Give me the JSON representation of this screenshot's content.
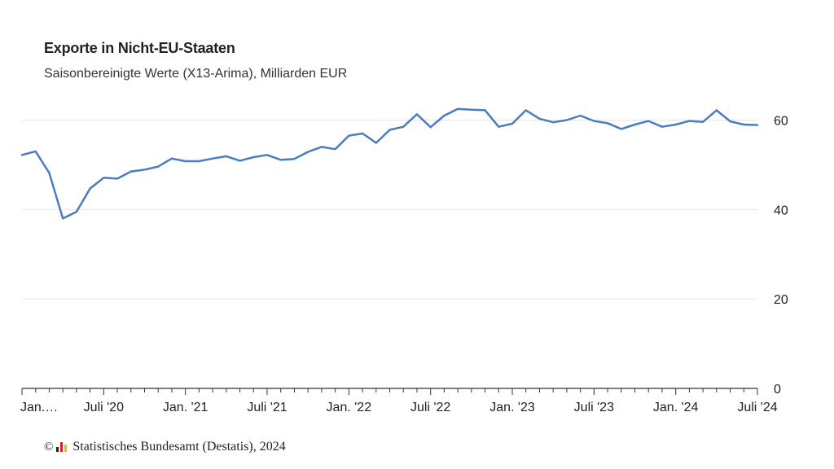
{
  "colors": {
    "line": "#4a7cbe",
    "grid": "#e6e6e6",
    "axis": "#333333"
  },
  "footer": {
    "copyright_symbol": "©",
    "source": "Statistisches Bundesamt (Destatis), 2024",
    "logo_icon": "destatis-logo-icon"
  },
  "chart_data": {
    "type": "line",
    "title": "Exporte in Nicht-EU-Staaten",
    "subtitle": "Saisonbereinigte Werte (X13-Arima), Milliarden EUR",
    "ylim": [
      0,
      65
    ],
    "yticks": [
      0,
      20,
      40,
      60
    ],
    "y_axis_position": "right",
    "grid": true,
    "xtick_labels": [
      {
        "index": 0,
        "label": "Jan.…"
      },
      {
        "index": 6,
        "label": "Juli '20"
      },
      {
        "index": 12,
        "label": "Jan. '21"
      },
      {
        "index": 18,
        "label": "Juli '21"
      },
      {
        "index": 24,
        "label": "Jan. '22"
      },
      {
        "index": 30,
        "label": "Juli '22"
      },
      {
        "index": 36,
        "label": "Jan. '23"
      },
      {
        "index": 42,
        "label": "Juli '23"
      },
      {
        "index": 48,
        "label": "Jan. '24"
      },
      {
        "index": 54,
        "label": "Juli '24"
      }
    ],
    "x_start": "2020-01",
    "x_end": "2024-07",
    "values": [
      52.2,
      53.0,
      48.2,
      38.0,
      39.5,
      44.7,
      47.1,
      46.9,
      48.5,
      48.9,
      49.6,
      51.4,
      50.8,
      50.8,
      51.4,
      51.9,
      50.9,
      51.7,
      52.2,
      51.1,
      51.3,
      52.9,
      54.0,
      53.5,
      56.5,
      57.0,
      54.9,
      57.8,
      58.5,
      61.3,
      58.4,
      61.0,
      62.5,
      62.3,
      62.2,
      58.5,
      59.2,
      62.2,
      60.3,
      59.5,
      60.0,
      61.0,
      59.8,
      59.3,
      58.0,
      59.0,
      59.8,
      58.5,
      59.0,
      59.8,
      59.6,
      62.2,
      59.7,
      59.0,
      58.9
    ]
  }
}
